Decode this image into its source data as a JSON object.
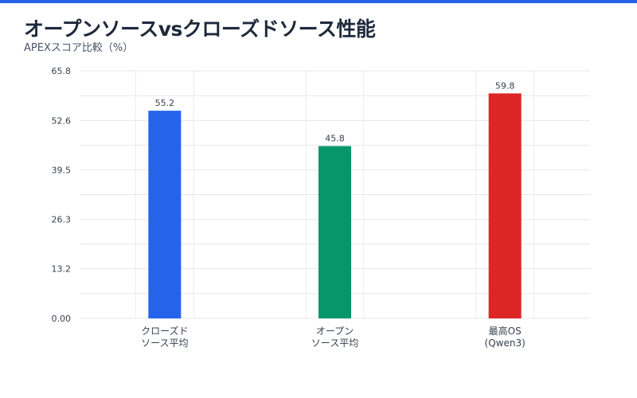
{
  "title": "オープンソースvsクローズドソース性能",
  "subtitle": "APEXスコア比較（%）",
  "colors": {
    "accent_bar": "#2563eb"
  },
  "chart_data": {
    "type": "bar",
    "categories": [
      [
        "クローズド",
        "ソース平均"
      ],
      [
        "オープン",
        "ソース平均"
      ],
      [
        "最高OS",
        "(Qwen3)"
      ]
    ],
    "values": [
      55.2,
      45.8,
      59.8
    ],
    "value_labels": [
      "55.2",
      "45.8",
      "59.8"
    ],
    "colors": [
      "#2563eb",
      "#059669",
      "#dc2626"
    ],
    "ylim": [
      0,
      65.8
    ],
    "yticks": [
      0,
      13.2,
      26.3,
      39.5,
      52.6,
      65.8
    ],
    "ytick_labels": [
      "0.00",
      "13.2",
      "26.3",
      "39.5",
      "52.6",
      "65.8"
    ],
    "grid": true,
    "legend": "none"
  }
}
